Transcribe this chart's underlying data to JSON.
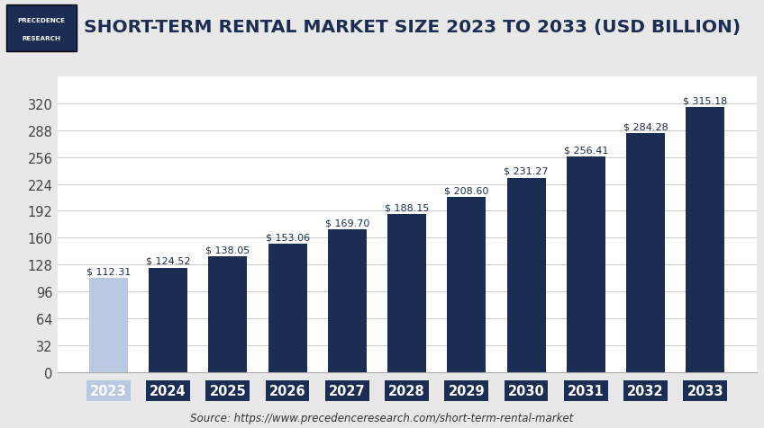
{
  "title": "SHORT-TERM RENTAL MARKET SIZE 2023 TO 2033 (USD BILLION)",
  "categories": [
    "2023",
    "2024",
    "2025",
    "2026",
    "2027",
    "2028",
    "2029",
    "2030",
    "2031",
    "2032",
    "2033"
  ],
  "values": [
    112.31,
    124.52,
    138.05,
    153.06,
    169.7,
    188.15,
    208.6,
    231.27,
    256.41,
    284.28,
    315.18
  ],
  "labels": [
    "$ 112.31",
    "$ 124.52",
    "$ 138.05",
    "$ 153.06",
    "$ 169.70",
    "$ 188.15",
    "$ 208.60",
    "$ 231.27",
    "$ 256.41",
    "$ 284.28",
    "$ 315.18"
  ],
  "bar_colors": [
    "#b8c9e1",
    "#1b2d52",
    "#1b2d52",
    "#1b2d52",
    "#1b2d52",
    "#1b2d52",
    "#1b2d52",
    "#1b2d52",
    "#1b2d52",
    "#1b2d52",
    "#1b2d52"
  ],
  "xtick_bg_colors": [
    "#b8c9e1",
    "#1b2d52",
    "#1b2d52",
    "#1b2d52",
    "#1b2d52",
    "#1b2d52",
    "#1b2d52",
    "#1b2d52",
    "#1b2d52",
    "#1b2d52",
    "#1b2d52"
  ],
  "ylim": [
    0,
    352
  ],
  "yticks": [
    0,
    32,
    64,
    96,
    128,
    160,
    192,
    224,
    256,
    288,
    320
  ],
  "background_color": "#e8e8e8",
  "header_color": "#ffffff",
  "plot_bg_color": "#ffffff",
  "nav_color": "#1b2d52",
  "title_color": "#1b2d52",
  "source_text": "Source: https://www.precedenceresearch.com/short-term-rental-market",
  "logo_line1": "PRECEDENCE",
  "logo_line2": "RESEARCH",
  "label_fontsize": 8.0,
  "title_fontsize": 14.5,
  "axis_fontsize": 10.5,
  "source_fontsize": 8.5
}
